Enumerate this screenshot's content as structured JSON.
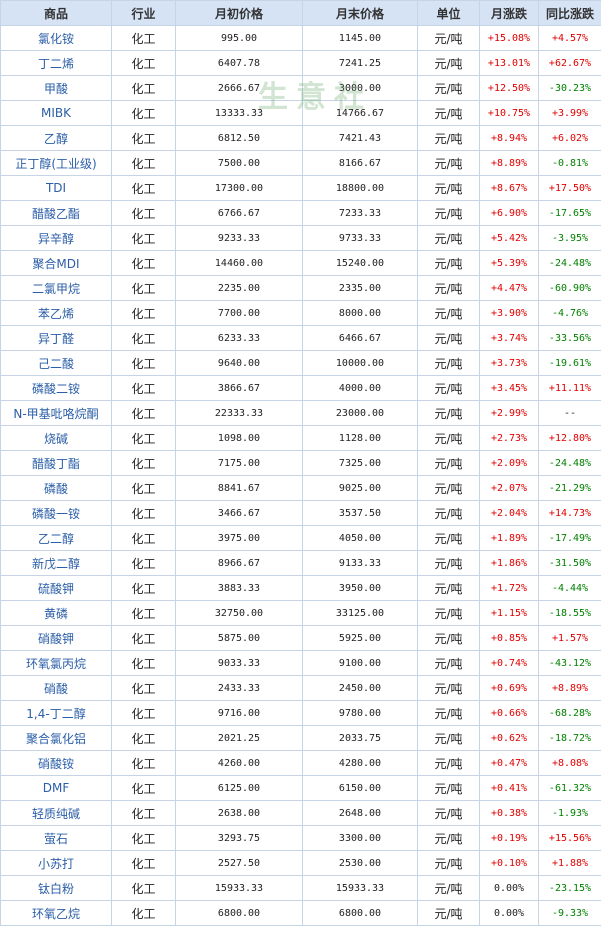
{
  "headers": [
    "商品",
    "行业",
    "月初价格",
    "月末价格",
    "单位",
    "月涨跌",
    "同比涨跌"
  ],
  "watermark": "生意社",
  "rows": [
    {
      "name": "氯化铵",
      "industry": "化工",
      "start": "995.00",
      "end": "1145.00",
      "unit": "元/吨",
      "mom": "+15.08%",
      "yoy": "+4.57%"
    },
    {
      "name": "丁二烯",
      "industry": "化工",
      "start": "6407.78",
      "end": "7241.25",
      "unit": "元/吨",
      "mom": "+13.01%",
      "yoy": "+62.67%"
    },
    {
      "name": "甲酸",
      "industry": "化工",
      "start": "2666.67",
      "end": "3000.00",
      "unit": "元/吨",
      "mom": "+12.50%",
      "yoy": "-30.23%"
    },
    {
      "name": "MIBK",
      "industry": "化工",
      "start": "13333.33",
      "end": "14766.67",
      "unit": "元/吨",
      "mom": "+10.75%",
      "yoy": "+3.99%"
    },
    {
      "name": "乙醇",
      "industry": "化工",
      "start": "6812.50",
      "end": "7421.43",
      "unit": "元/吨",
      "mom": "+8.94%",
      "yoy": "+6.02%"
    },
    {
      "name": "正丁醇(工业级)",
      "industry": "化工",
      "start": "7500.00",
      "end": "8166.67",
      "unit": "元/吨",
      "mom": "+8.89%",
      "yoy": "-0.81%"
    },
    {
      "name": "TDI",
      "industry": "化工",
      "start": "17300.00",
      "end": "18800.00",
      "unit": "元/吨",
      "mom": "+8.67%",
      "yoy": "+17.50%"
    },
    {
      "name": "醋酸乙酯",
      "industry": "化工",
      "start": "6766.67",
      "end": "7233.33",
      "unit": "元/吨",
      "mom": "+6.90%",
      "yoy": "-17.65%"
    },
    {
      "name": "异辛醇",
      "industry": "化工",
      "start": "9233.33",
      "end": "9733.33",
      "unit": "元/吨",
      "mom": "+5.42%",
      "yoy": "-3.95%"
    },
    {
      "name": "聚合MDI",
      "industry": "化工",
      "start": "14460.00",
      "end": "15240.00",
      "unit": "元/吨",
      "mom": "+5.39%",
      "yoy": "-24.48%"
    },
    {
      "name": "二氯甲烷",
      "industry": "化工",
      "start": "2235.00",
      "end": "2335.00",
      "unit": "元/吨",
      "mom": "+4.47%",
      "yoy": "-60.90%"
    },
    {
      "name": "苯乙烯",
      "industry": "化工",
      "start": "7700.00",
      "end": "8000.00",
      "unit": "元/吨",
      "mom": "+3.90%",
      "yoy": "-4.76%"
    },
    {
      "name": "异丁醛",
      "industry": "化工",
      "start": "6233.33",
      "end": "6466.67",
      "unit": "元/吨",
      "mom": "+3.74%",
      "yoy": "-33.56%"
    },
    {
      "name": "己二酸",
      "industry": "化工",
      "start": "9640.00",
      "end": "10000.00",
      "unit": "元/吨",
      "mom": "+3.73%",
      "yoy": "-19.61%"
    },
    {
      "name": "磷酸二铵",
      "industry": "化工",
      "start": "3866.67",
      "end": "4000.00",
      "unit": "元/吨",
      "mom": "+3.45%",
      "yoy": "+11.11%"
    },
    {
      "name": "N-甲基吡咯烷酮",
      "industry": "化工",
      "start": "22333.33",
      "end": "23000.00",
      "unit": "元/吨",
      "mom": "+2.99%",
      "yoy": "--"
    },
    {
      "name": "烧碱",
      "industry": "化工",
      "start": "1098.00",
      "end": "1128.00",
      "unit": "元/吨",
      "mom": "+2.73%",
      "yoy": "+12.80%"
    },
    {
      "name": "醋酸丁酯",
      "industry": "化工",
      "start": "7175.00",
      "end": "7325.00",
      "unit": "元/吨",
      "mom": "+2.09%",
      "yoy": "-24.48%"
    },
    {
      "name": "磷酸",
      "industry": "化工",
      "start": "8841.67",
      "end": "9025.00",
      "unit": "元/吨",
      "mom": "+2.07%",
      "yoy": "-21.29%"
    },
    {
      "name": "磷酸一铵",
      "industry": "化工",
      "start": "3466.67",
      "end": "3537.50",
      "unit": "元/吨",
      "mom": "+2.04%",
      "yoy": "+14.73%"
    },
    {
      "name": "乙二醇",
      "industry": "化工",
      "start": "3975.00",
      "end": "4050.00",
      "unit": "元/吨",
      "mom": "+1.89%",
      "yoy": "-17.49%"
    },
    {
      "name": "新戊二醇",
      "industry": "化工",
      "start": "8966.67",
      "end": "9133.33",
      "unit": "元/吨",
      "mom": "+1.86%",
      "yoy": "-31.50%"
    },
    {
      "name": "硫酸钾",
      "industry": "化工",
      "start": "3883.33",
      "end": "3950.00",
      "unit": "元/吨",
      "mom": "+1.72%",
      "yoy": "-4.44%"
    },
    {
      "name": "黄磷",
      "industry": "化工",
      "start": "32750.00",
      "end": "33125.00",
      "unit": "元/吨",
      "mom": "+1.15%",
      "yoy": "-18.55%"
    },
    {
      "name": "硝酸钾",
      "industry": "化工",
      "start": "5875.00",
      "end": "5925.00",
      "unit": "元/吨",
      "mom": "+0.85%",
      "yoy": "+1.57%"
    },
    {
      "name": "环氧氯丙烷",
      "industry": "化工",
      "start": "9033.33",
      "end": "9100.00",
      "unit": "元/吨",
      "mom": "+0.74%",
      "yoy": "-43.12%"
    },
    {
      "name": "硝酸",
      "industry": "化工",
      "start": "2433.33",
      "end": "2450.00",
      "unit": "元/吨",
      "mom": "+0.69%",
      "yoy": "+8.89%"
    },
    {
      "name": "1,4-丁二醇",
      "industry": "化工",
      "start": "9716.00",
      "end": "9780.00",
      "unit": "元/吨",
      "mom": "+0.66%",
      "yoy": "-68.28%"
    },
    {
      "name": "聚合氯化铝",
      "industry": "化工",
      "start": "2021.25",
      "end": "2033.75",
      "unit": "元/吨",
      "mom": "+0.62%",
      "yoy": "-18.72%"
    },
    {
      "name": "硝酸铵",
      "industry": "化工",
      "start": "4260.00",
      "end": "4280.00",
      "unit": "元/吨",
      "mom": "+0.47%",
      "yoy": "+8.08%"
    },
    {
      "name": "DMF",
      "industry": "化工",
      "start": "6125.00",
      "end": "6150.00",
      "unit": "元/吨",
      "mom": "+0.41%",
      "yoy": "-61.32%"
    },
    {
      "name": "轻质纯碱",
      "industry": "化工",
      "start": "2638.00",
      "end": "2648.00",
      "unit": "元/吨",
      "mom": "+0.38%",
      "yoy": "-1.93%"
    },
    {
      "name": "萤石",
      "industry": "化工",
      "start": "3293.75",
      "end": "3300.00",
      "unit": "元/吨",
      "mom": "+0.19%",
      "yoy": "+15.56%"
    },
    {
      "name": "小苏打",
      "industry": "化工",
      "start": "2527.50",
      "end": "2530.00",
      "unit": "元/吨",
      "mom": "+0.10%",
      "yoy": "+1.88%"
    },
    {
      "name": "钛白粉",
      "industry": "化工",
      "start": "15933.33",
      "end": "15933.33",
      "unit": "元/吨",
      "mom": "0.00%",
      "yoy": "-23.15%"
    },
    {
      "name": "环氧乙烷",
      "industry": "化工",
      "start": "6800.00",
      "end": "6800.00",
      "unit": "元/吨",
      "mom": "0.00%",
      "yoy": "-9.33%"
    }
  ],
  "colors": {
    "header_bg": "#d5e3f5",
    "border": "#c7d4e6",
    "name_text": "#2b5ea8",
    "rise": "#e00000",
    "fall": "#008000",
    "neutral": "#222222"
  }
}
